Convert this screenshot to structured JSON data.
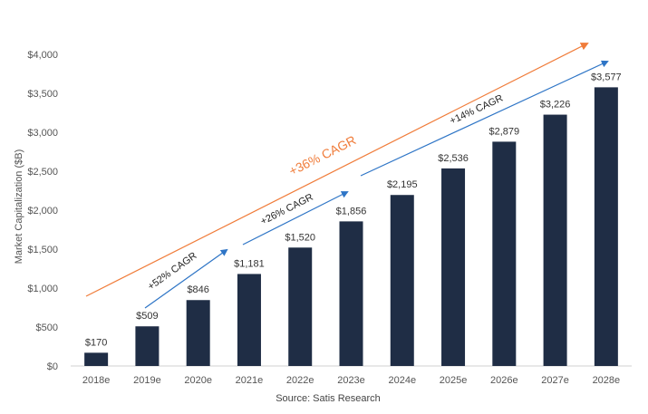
{
  "chart_data": {
    "type": "bar",
    "categories": [
      "2018e",
      "2019e",
      "2020e",
      "2021e",
      "2022e",
      "2023e",
      "2024e",
      "2025e",
      "2026e",
      "2027e",
      "2028e"
    ],
    "values": [
      170,
      509,
      846,
      1181,
      1520,
      1856,
      2195,
      2536,
      2879,
      3226,
      3577
    ],
    "data_labels": [
      "$170",
      "$509",
      "$846",
      "$1,181",
      "$1,520",
      "$1,856",
      "$2,195",
      "$2,536",
      "$2,879",
      "$3,226",
      "$3,577"
    ],
    "title": "",
    "xlabel": "",
    "ylabel": "Market Capitalization ($B)",
    "ylim": [
      0,
      4000
    ],
    "yticks": [
      0,
      500,
      1000,
      1500,
      2000,
      2500,
      3000,
      3500,
      4000
    ],
    "ytick_labels": [
      "$0",
      "$500",
      "$1,000",
      "$1,500",
      "$2,000",
      "$2,500",
      "$3,000",
      "$3,500",
      "$4,000"
    ],
    "grid": false,
    "bar_color": "#1f2d45",
    "annotations": [
      {
        "text": "+52% CAGR",
        "from_category": "2019e",
        "to_category": "2021e",
        "color": "#2e75c6"
      },
      {
        "text": "+26% CAGR",
        "from_category": "2021e",
        "to_category": "2023e",
        "color": "#2e75c6"
      },
      {
        "text": "+14% CAGR",
        "from_category": "2023e",
        "to_category": "2028e",
        "color": "#2e75c6"
      },
      {
        "text": "+36% CAGR",
        "from_category": "2018e",
        "to_category": "2028e",
        "color": "#f07c3a"
      }
    ]
  },
  "source": "Source: Satis Research"
}
